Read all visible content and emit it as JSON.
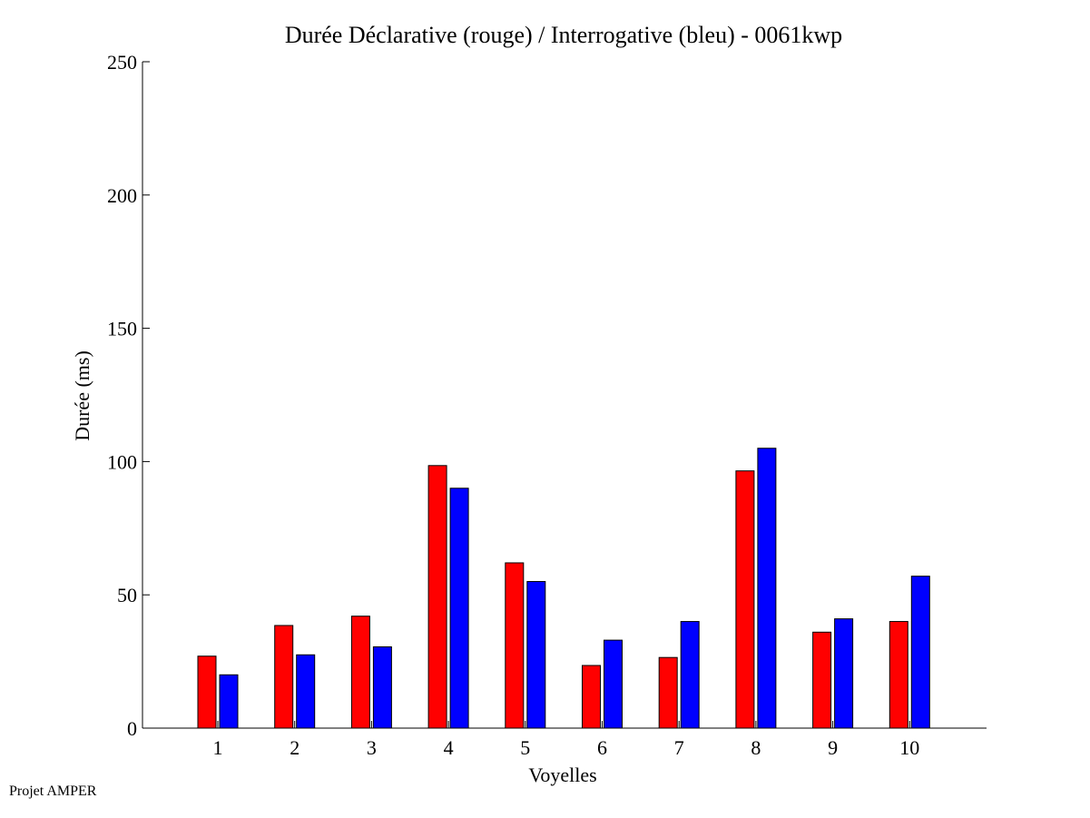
{
  "footer": {
    "credit": "Projet AMPER"
  },
  "chart_data": {
    "type": "bar",
    "title": "Durée Déclarative (rouge) / Interrogative (bleu) - 0061kwp",
    "xlabel": "Voyelles",
    "ylabel": "Durée (ms)",
    "ylim": [
      0,
      250
    ],
    "yticks": [
      0,
      50,
      100,
      150,
      200,
      250
    ],
    "categories": [
      "1",
      "2",
      "3",
      "4",
      "5",
      "6",
      "7",
      "8",
      "9",
      "10"
    ],
    "series": [
      {
        "color": "#ff0000",
        "values": [
          27,
          38.5,
          42,
          98.5,
          62,
          23.5,
          26.5,
          96.5,
          36,
          40
        ]
      },
      {
        "color": "#0000ff",
        "values": [
          20,
          27.5,
          30.5,
          90,
          55,
          33,
          40,
          105,
          41,
          57
        ]
      }
    ],
    "grid": false,
    "legend": "none"
  }
}
